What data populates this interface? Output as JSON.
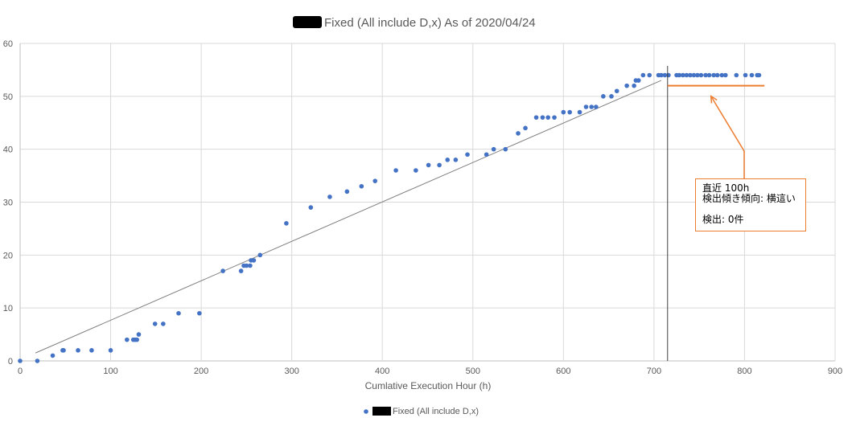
{
  "chart_data": {
    "type": "scatter",
    "title": "Fixed (All include D,x) As of 2020/04/24",
    "title_redacted_prefix": true,
    "xlabel": "Cumlative Execution Hour (h)",
    "ylabel": "",
    "xlim": [
      0,
      900
    ],
    "ylim": [
      0,
      60
    ],
    "x_ticks": [
      0,
      100,
      200,
      300,
      400,
      500,
      600,
      700,
      800,
      900
    ],
    "y_ticks": [
      0,
      10,
      20,
      30,
      40,
      50,
      60
    ],
    "grid": true,
    "legend": {
      "position": "bottom",
      "entries": [
        "Fixed (All include D,x)"
      ]
    },
    "series": [
      {
        "name": "Fixed (All include D,x)",
        "color": "#4472C4",
        "points": [
          [
            0,
            0
          ],
          [
            19,
            0
          ],
          [
            36,
            1
          ],
          [
            47,
            2
          ],
          [
            48,
            2
          ],
          [
            64,
            2
          ],
          [
            79,
            2
          ],
          [
            100,
            2
          ],
          [
            118,
            4
          ],
          [
            125,
            4
          ],
          [
            127,
            4
          ],
          [
            129,
            4
          ],
          [
            131,
            5
          ],
          [
            149,
            7
          ],
          [
            158,
            7
          ],
          [
            175,
            9
          ],
          [
            198,
            9
          ],
          [
            224,
            17
          ],
          [
            244,
            17
          ],
          [
            247,
            18
          ],
          [
            250,
            18
          ],
          [
            254,
            18
          ],
          [
            255,
            19
          ],
          [
            258,
            19
          ],
          [
            265,
            20
          ],
          [
            294,
            26
          ],
          [
            321,
            29
          ],
          [
            342,
            31
          ],
          [
            361,
            32
          ],
          [
            377,
            33
          ],
          [
            392,
            34
          ],
          [
            415,
            36
          ],
          [
            437,
            36
          ],
          [
            451,
            37
          ],
          [
            463,
            37
          ],
          [
            472,
            38
          ],
          [
            481,
            38
          ],
          [
            494,
            39
          ],
          [
            515,
            39
          ],
          [
            523,
            40
          ],
          [
            536,
            40
          ],
          [
            550,
            43
          ],
          [
            558,
            44
          ],
          [
            570,
            46
          ],
          [
            577,
            46
          ],
          [
            583,
            46
          ],
          [
            590,
            46
          ],
          [
            600,
            47
          ],
          [
            607,
            47
          ],
          [
            618,
            47
          ],
          [
            625,
            48
          ],
          [
            631,
            48
          ],
          [
            636,
            48
          ],
          [
            644,
            50
          ],
          [
            653,
            50
          ],
          [
            659,
            51
          ],
          [
            670,
            52
          ],
          [
            678,
            52
          ],
          [
            680,
            53
          ],
          [
            683,
            53
          ],
          [
            688,
            54
          ],
          [
            695,
            54
          ],
          [
            705,
            54
          ],
          [
            708,
            54
          ],
          [
            712,
            54
          ],
          [
            716,
            54
          ],
          [
            725,
            54
          ],
          [
            728,
            54
          ],
          [
            732,
            54
          ],
          [
            736,
            54
          ],
          [
            740,
            54
          ],
          [
            744,
            54
          ],
          [
            748,
            54
          ],
          [
            752,
            54
          ],
          [
            757,
            54
          ],
          [
            761,
            54
          ],
          [
            766,
            54
          ],
          [
            770,
            54
          ],
          [
            775,
            54
          ],
          [
            779,
            54
          ],
          [
            791,
            54
          ],
          [
            801,
            54
          ],
          [
            808,
            54
          ],
          [
            814,
            54
          ],
          [
            816,
            54
          ]
        ]
      }
    ],
    "trendline": {
      "type": "linear",
      "x": [
        17,
        708
      ],
      "y": [
        1.5,
        53
      ],
      "color": "#808080"
    },
    "vertical_marker": {
      "x": 715,
      "color": "#404040"
    },
    "flat_line": {
      "x": [
        715,
        822
      ],
      "y": 52,
      "color": "#ED7D31"
    },
    "annotation": {
      "lines": [
        "直近 100h",
        "検出傾き傾向: 横這い",
        "",
        "検出: 0件"
      ],
      "arrow_target": [
        762,
        50.5
      ],
      "color": "#ED7D31"
    }
  }
}
